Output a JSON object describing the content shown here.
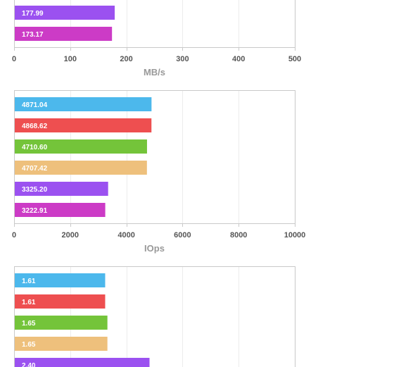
{
  "chart_data": [
    {
      "type": "bar",
      "orientation": "horizontal",
      "xlabel": "MB/s",
      "xlim": [
        0,
        500
      ],
      "xticks": [
        "0",
        "100",
        "200",
        "300",
        "400",
        "500"
      ],
      "grid": true,
      "bars": [
        {
          "value": 177.99,
          "label": "177.99",
          "color": "#9b51f0"
        },
        {
          "value": 173.17,
          "label": "173.17",
          "color": "#cc3bc6"
        }
      ]
    },
    {
      "type": "bar",
      "orientation": "horizontal",
      "xlabel": "IOps",
      "xlim": [
        0,
        10000
      ],
      "xticks": [
        "0",
        "2000",
        "4000",
        "6000",
        "8000",
        "10000"
      ],
      "grid": true,
      "bars": [
        {
          "value": 4871.04,
          "label": "4871.04",
          "color": "#4cb8ec"
        },
        {
          "value": 4868.62,
          "label": "4868.62",
          "color": "#ee4f50"
        },
        {
          "value": 4710.6,
          "label": "4710.60",
          "color": "#74c43a"
        },
        {
          "value": 4707.42,
          "label": "4707.42",
          "color": "#eec07c"
        },
        {
          "value": 3325.2,
          "label": "3325.20",
          "color": "#9b51f0"
        },
        {
          "value": 3222.91,
          "label": "3222.91",
          "color": "#cc3bc6"
        }
      ]
    },
    {
      "type": "bar",
      "orientation": "horizontal",
      "xlim": [
        0,
        5
      ],
      "grid": true,
      "bars": [
        {
          "value": 1.61,
          "label": "1.61",
          "color": "#4cb8ec"
        },
        {
          "value": 1.61,
          "label": "1.61",
          "color": "#ee4f50"
        },
        {
          "value": 1.65,
          "label": "1.65",
          "color": "#74c43a"
        },
        {
          "value": 1.65,
          "label": "1.65",
          "color": "#eec07c"
        },
        {
          "value": 2.4,
          "label": "2.40",
          "color": "#9b51f0"
        }
      ]
    }
  ]
}
